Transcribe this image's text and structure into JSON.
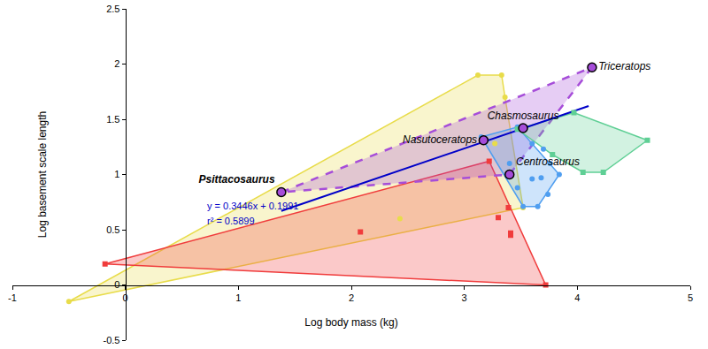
{
  "chart_data": {
    "type": "scatter",
    "x_label": "Log body mass (kg)",
    "y_label": "Log basement scale length",
    "xlim": [
      -1,
      5
    ],
    "ylim": [
      -0.5,
      2.5
    ],
    "xticks": [
      -1,
      0,
      1,
      2,
      3,
      4,
      5
    ],
    "yticks": [
      -0.5,
      0,
      0.5,
      1,
      1.5,
      2,
      2.5
    ],
    "grid": false,
    "annotations": [
      "y = 0.3446x + 0.1991",
      "r² = 0.5899"
    ],
    "series": [
      {
        "type": "polygon",
        "color": "#e8dc4a",
        "line_style": "solid",
        "x": [
          -0.5,
          3.12,
          3.33,
          3.36,
          3.52
        ],
        "y": [
          -0.15,
          1.9,
          1.9,
          1.7,
          0.7
        ]
      },
      {
        "type": "polygon",
        "color": "#f03c3c",
        "line_style": "solid",
        "x": [
          -0.18,
          3.22,
          3.72
        ],
        "y": [
          0.19,
          1.12,
          0.0
        ]
      },
      {
        "type": "polygon",
        "color": "#a64dd9",
        "line_style": "dashed",
        "x": [
          1.38,
          4.13,
          3.4
        ],
        "y": [
          0.84,
          1.97,
          1.0
        ]
      },
      {
        "type": "polygon",
        "color": "#4f9ef0",
        "line_style": "solid",
        "x": [
          3.15,
          3.47,
          3.84,
          3.65,
          3.52
        ],
        "y": [
          1.34,
          1.43,
          1.0,
          0.71,
          0.71
        ]
      },
      {
        "type": "polygon",
        "color": "#5fcf95",
        "line_style": "solid",
        "x": [
          3.47,
          3.97,
          4.62,
          4.23,
          4.05,
          3.78
        ],
        "y": [
          1.41,
          1.56,
          1.31,
          1.02,
          1.02,
          1.18
        ]
      },
      {
        "type": "line",
        "color": "#0000c8",
        "line_style": "solid",
        "x": [
          1.38,
          4.1
        ],
        "y": [
          0.67,
          1.62
        ]
      },
      {
        "type": "scatter",
        "color": "#e8dc4a",
        "marker": "circle",
        "x": [
          -0.5,
          2.43,
          3.12,
          3.27,
          3.33,
          3.36,
          3.52
        ],
        "y": [
          -0.15,
          0.6,
          1.9,
          1.28,
          1.9,
          1.7,
          0.7
        ]
      },
      {
        "type": "scatter",
        "color": "#f03c3c",
        "marker": "square",
        "x": [
          -0.18,
          2.08,
          3.22,
          3.3,
          3.39,
          3.41,
          3.41,
          3.72
        ],
        "y": [
          0.19,
          0.48,
          1.12,
          0.61,
          0.7,
          0.47,
          0.45,
          0.0
        ]
      },
      {
        "type": "scatter",
        "color": "#4f9ef0",
        "marker": "circle",
        "x": [
          3.15,
          3.47,
          3.84,
          3.65,
          3.52,
          3.6,
          3.7,
          3.76,
          3.6,
          3.68,
          3.74,
          3.47,
          3.4
        ],
        "y": [
          1.34,
          1.43,
          1.0,
          0.71,
          0.71,
          1.28,
          1.23,
          1.1,
          0.96,
          0.97,
          0.82,
          0.88,
          1.1
        ]
      },
      {
        "type": "scatter",
        "color": "#5fcf95",
        "marker": "square",
        "x": [
          3.47,
          3.97,
          4.62,
          4.23,
          4.05,
          3.78
        ],
        "y": [
          1.41,
          1.56,
          1.31,
          1.02,
          1.02,
          1.18
        ]
      },
      {
        "type": "scatter",
        "color": "#a64dd9",
        "marker": "circle",
        "x": [
          1.38,
          3.17,
          3.52,
          4.13,
          3.4
        ],
        "y": [
          0.84,
          1.31,
          1.42,
          1.97,
          1.0
        ],
        "labels": [
          "Psittacosaurus",
          "Nasutoceratops",
          "Chasmosaurus",
          "Triceratops",
          "Centrosaurus"
        ]
      }
    ]
  }
}
